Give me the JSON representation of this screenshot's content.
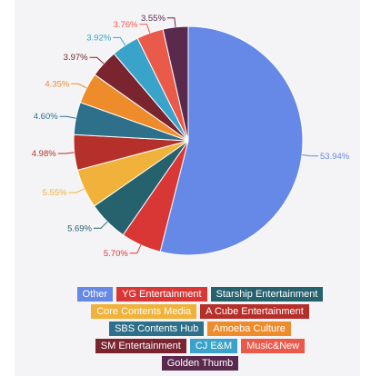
{
  "chart_data": {
    "type": "pie",
    "slices": [
      {
        "label": "Other",
        "value": 53.94,
        "text": "53.94%",
        "color": "#6688e6"
      },
      {
        "label": "YG Entertainment",
        "value": 5.7,
        "text": "5.70%",
        "color": "#d93636"
      },
      {
        "label": "Starship Entertainment",
        "value": 5.69,
        "text": "5.69%",
        "color": "#26616e"
      },
      {
        "label": "Core Contents Media",
        "value": 5.55,
        "text": "5.55%",
        "color": "#f0b23a"
      },
      {
        "label": "A Cube Entertainment",
        "value": 4.98,
        "text": "4.98%",
        "color": "#b5302b"
      },
      {
        "label": "SBS Contents Hub",
        "value": 4.6,
        "text": "4.60%",
        "color": "#2e6f8a"
      },
      {
        "label": "Amoeba Culture",
        "value": 4.35,
        "text": "4.35%",
        "color": "#ee8c2c"
      },
      {
        "label": "SM Entertainment",
        "value": 3.97,
        "text": "3.97%",
        "color": "#7a2430"
      },
      {
        "label": "CJ E&M",
        "value": 3.92,
        "text": "3.92%",
        "color": "#3aa3c9"
      },
      {
        "label": "Music&New",
        "value": 3.76,
        "text": "3.76%",
        "color": "#ea5a4a"
      },
      {
        "label": "Golden Thumb",
        "value": 3.55,
        "text": "3.55%",
        "color": "#5a2a4e"
      }
    ],
    "legend_placement": "bottom"
  },
  "legend_rows": [
    [
      0,
      1,
      2
    ],
    [
      3,
      4
    ],
    [
      5,
      6
    ],
    [
      7,
      8,
      9
    ],
    [
      10
    ]
  ]
}
